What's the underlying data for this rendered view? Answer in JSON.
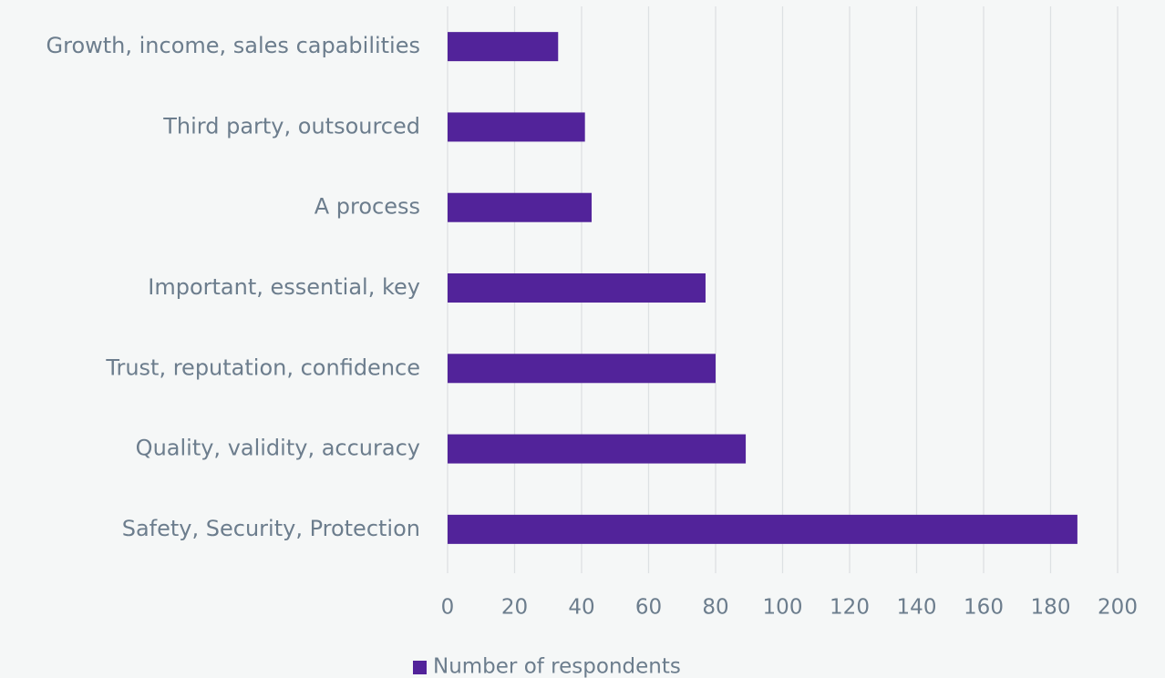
{
  "chart_data": {
    "type": "bar",
    "orientation": "horizontal",
    "categories": [
      "Growth, income, sales capabilities",
      "Third party, outsourced",
      "A process",
      "Important, essential, key",
      "Trust, reputation, confidence",
      "Quality, validity, accuracy",
      "Safety, Security, Protection"
    ],
    "series": [
      {
        "name": "Number of respondents",
        "color": "#52239a",
        "values": [
          33,
          41,
          43,
          77,
          80,
          89,
          188
        ]
      }
    ],
    "xlim": [
      0,
      200
    ],
    "xticks": [
      0,
      20,
      40,
      60,
      80,
      100,
      120,
      140,
      160,
      180,
      200
    ],
    "grid": true,
    "legend": "bottom"
  }
}
